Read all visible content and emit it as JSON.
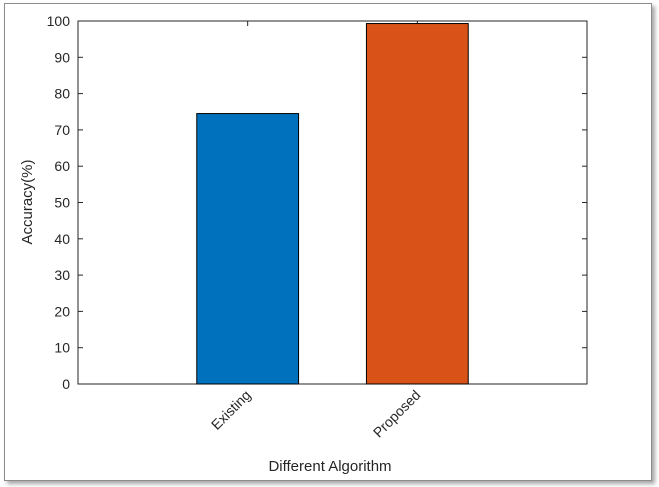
{
  "chart_data": {
    "type": "bar",
    "title": "",
    "xlabel": "Different Algorithm",
    "ylabel": "Accuracy(%)",
    "categories": [
      "Existing",
      "Proposed"
    ],
    "values": [
      74.5,
      99.3
    ],
    "bar_colors": [
      "#0072bd",
      "#d95319"
    ],
    "ylim": [
      0,
      100
    ],
    "yticks": [
      0,
      10,
      20,
      30,
      40,
      50,
      60,
      70,
      80,
      90,
      100
    ],
    "xtick_rotation": "45 degrees",
    "grid": false,
    "legend": "none"
  }
}
